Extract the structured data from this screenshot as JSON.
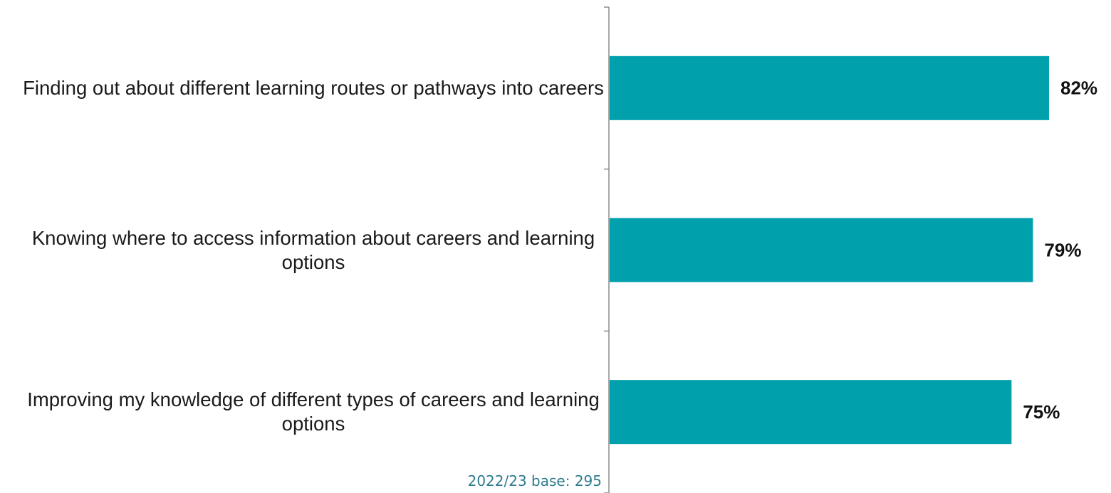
{
  "chart_data": {
    "type": "bar",
    "orientation": "horizontal",
    "categories": [
      "Finding out about different learning routes or pathways into careers",
      "Knowing where to access information about careers and learning options",
      "Improving my knowledge of different types of careers and learning options"
    ],
    "values": [
      82,
      79,
      75
    ],
    "value_labels": [
      "82%",
      "79%",
      "75%"
    ],
    "color": "#00a0ad",
    "annotation": "2022/23 base: 295"
  }
}
